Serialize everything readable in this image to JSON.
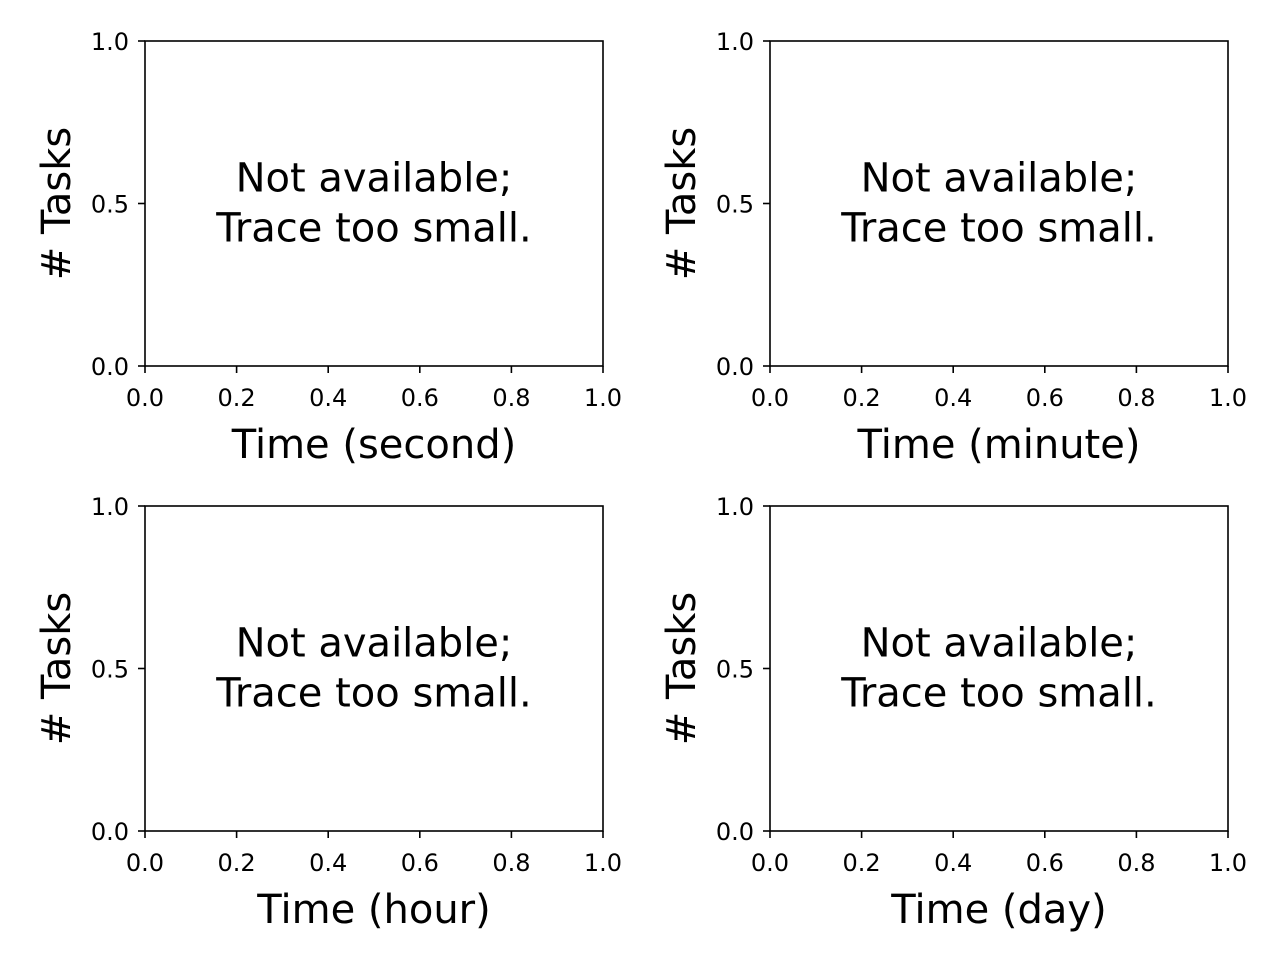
{
  "chart_data": [
    {
      "type": "line",
      "series": [],
      "xlabel": "Time (second)",
      "ylabel": "# Tasks",
      "xlim": [
        0.0,
        1.0
      ],
      "ylim": [
        0.0,
        1.0
      ],
      "x_ticks": [
        "0.0",
        "0.2",
        "0.4",
        "0.6",
        "0.8",
        "1.0"
      ],
      "y_ticks": [
        "0.0",
        "0.5",
        "1.0"
      ],
      "annotation": [
        "Not available;",
        "Trace too small."
      ],
      "grid": false
    },
    {
      "type": "line",
      "series": [],
      "xlabel": "Time (minute)",
      "ylabel": "# Tasks",
      "xlim": [
        0.0,
        1.0
      ],
      "ylim": [
        0.0,
        1.0
      ],
      "x_ticks": [
        "0.0",
        "0.2",
        "0.4",
        "0.6",
        "0.8",
        "1.0"
      ],
      "y_ticks": [
        "0.0",
        "0.5",
        "1.0"
      ],
      "annotation": [
        "Not available;",
        "Trace too small."
      ],
      "grid": false
    },
    {
      "type": "line",
      "series": [],
      "xlabel": "Time (hour)",
      "ylabel": "# Tasks",
      "xlim": [
        0.0,
        1.0
      ],
      "ylim": [
        0.0,
        1.0
      ],
      "x_ticks": [
        "0.0",
        "0.2",
        "0.4",
        "0.6",
        "0.8",
        "1.0"
      ],
      "y_ticks": [
        "0.0",
        "0.5",
        "1.0"
      ],
      "annotation": [
        "Not available;",
        "Trace too small."
      ],
      "grid": false
    },
    {
      "type": "line",
      "series": [],
      "xlabel": "Time (day)",
      "ylabel": "# Tasks",
      "xlim": [
        0.0,
        1.0
      ],
      "ylim": [
        0.0,
        1.0
      ],
      "x_ticks": [
        "0.0",
        "0.2",
        "0.4",
        "0.6",
        "0.8",
        "1.0"
      ],
      "y_ticks": [
        "0.0",
        "0.5",
        "1.0"
      ],
      "annotation": [
        "Not available;",
        "Trace too small."
      ],
      "grid": false
    }
  ]
}
